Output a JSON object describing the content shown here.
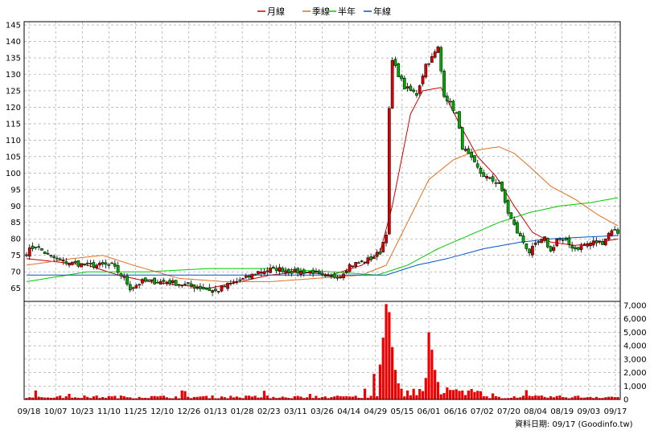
{
  "chart_data": {
    "type": "candlestick",
    "legend": [
      {
        "name": "月線",
        "color": "#cc0000"
      },
      {
        "name": "季線",
        "color": "#e07020"
      },
      {
        "name": "半年",
        "color": "#00cc00"
      },
      {
        "name": "年線",
        "color": "#0055cc"
      }
    ],
    "price_axis": {
      "ylim": [
        61,
        146
      ],
      "ticks": [
        65,
        70,
        75,
        80,
        85,
        90,
        95,
        100,
        105,
        110,
        115,
        120,
        125,
        130,
        135,
        140,
        145
      ]
    },
    "volume_axis": {
      "ylim": [
        0,
        7300
      ],
      "ticks": [
        0,
        1000,
        2000,
        3000,
        4000,
        5000,
        6000,
        7000
      ],
      "tick_labels": [
        "0",
        "1,000",
        "2,000",
        "3,000",
        "4,000",
        "5,000",
        "6,000",
        "7,000"
      ]
    },
    "x_labels": [
      "09/18",
      "10/07",
      "10/23",
      "11/10",
      "11/25",
      "12/10",
      "12/26",
      "01/13",
      "01/28",
      "02/23",
      "03/11",
      "03/26",
      "04/14",
      "04/29",
      "05/15",
      "06/01",
      "06/16",
      "07/02",
      "07/20",
      "08/04",
      "08/19",
      "09/03",
      "09/17"
    ],
    "close_anchors": [
      [
        0,
        76
      ],
      [
        3,
        78
      ],
      [
        7,
        75
      ],
      [
        12,
        73
      ],
      [
        20,
        72
      ],
      [
        28,
        72
      ],
      [
        32,
        68
      ],
      [
        34,
        65
      ],
      [
        38,
        67
      ],
      [
        46,
        67
      ],
      [
        52,
        66
      ],
      [
        58,
        65
      ],
      [
        62,
        64
      ],
      [
        66,
        66
      ],
      [
        72,
        68
      ],
      [
        76,
        70
      ],
      [
        82,
        71
      ],
      [
        88,
        70
      ],
      [
        94,
        70
      ],
      [
        98,
        68
      ],
      [
        103,
        69
      ],
      [
        106,
        72
      ],
      [
        110,
        73
      ],
      [
        113,
        74
      ],
      [
        116,
        76
      ],
      [
        118,
        82
      ],
      [
        119,
        119
      ],
      [
        120,
        134
      ],
      [
        122,
        130
      ],
      [
        124,
        126
      ],
      [
        128,
        124
      ],
      [
        131,
        133
      ],
      [
        133,
        135
      ],
      [
        135,
        138
      ],
      [
        137,
        124
      ],
      [
        141,
        118
      ],
      [
        143,
        108
      ],
      [
        146,
        104
      ],
      [
        149,
        100
      ],
      [
        152,
        98
      ],
      [
        155,
        97
      ],
      [
        158,
        88
      ],
      [
        161,
        82
      ],
      [
        163,
        79
      ],
      [
        165,
        76
      ],
      [
        167,
        78
      ],
      [
        170,
        80
      ],
      [
        172,
        76
      ],
      [
        174,
        80
      ],
      [
        177,
        79
      ],
      [
        180,
        77
      ],
      [
        183,
        78
      ],
      [
        186,
        79
      ],
      [
        189,
        79
      ],
      [
        192,
        83
      ],
      [
        194,
        82
      ]
    ],
    "ma_month_anchors": [
      [
        0,
        74
      ],
      [
        10,
        73
      ],
      [
        20,
        72
      ],
      [
        30,
        69
      ],
      [
        40,
        67
      ],
      [
        50,
        66
      ],
      [
        60,
        65
      ],
      [
        70,
        67
      ],
      [
        80,
        69
      ],
      [
        90,
        70
      ],
      [
        100,
        69
      ],
      [
        110,
        72
      ],
      [
        116,
        76
      ],
      [
        120,
        90
      ],
      [
        126,
        118
      ],
      [
        130,
        125
      ],
      [
        136,
        126
      ],
      [
        142,
        115
      ],
      [
        148,
        105
      ],
      [
        154,
        99
      ],
      [
        160,
        90
      ],
      [
        166,
        82
      ],
      [
        172,
        79
      ],
      [
        180,
        78
      ],
      [
        188,
        79
      ],
      [
        194,
        80
      ]
    ],
    "ma_quarter_anchors": [
      [
        0,
        72
      ],
      [
        15,
        74
      ],
      [
        25,
        75
      ],
      [
        35,
        72
      ],
      [
        50,
        68
      ],
      [
        65,
        67
      ],
      [
        80,
        67
      ],
      [
        95,
        68
      ],
      [
        110,
        69
      ],
      [
        118,
        72
      ],
      [
        125,
        85
      ],
      [
        132,
        98
      ],
      [
        140,
        104
      ],
      [
        148,
        107
      ],
      [
        155,
        108
      ],
      [
        160,
        106
      ],
      [
        165,
        102
      ],
      [
        172,
        96
      ],
      [
        180,
        92
      ],
      [
        188,
        87
      ],
      [
        194,
        84
      ]
    ],
    "ma_half_anchors": [
      [
        0,
        67
      ],
      [
        20,
        70
      ],
      [
        40,
        70
      ],
      [
        60,
        71
      ],
      [
        80,
        71
      ],
      [
        100,
        70
      ],
      [
        115,
        69
      ],
      [
        125,
        72
      ],
      [
        135,
        77
      ],
      [
        145,
        81
      ],
      [
        155,
        85
      ],
      [
        165,
        88
      ],
      [
        175,
        90
      ],
      [
        185,
        91
      ],
      [
        194,
        92.5
      ]
    ],
    "ma_year_anchors": [
      [
        0,
        69
      ],
      [
        40,
        69
      ],
      [
        80,
        69
      ],
      [
        105,
        69
      ],
      [
        118,
        69
      ],
      [
        128,
        72
      ],
      [
        138,
        74
      ],
      [
        150,
        77
      ],
      [
        162,
        79
      ],
      [
        172,
        80
      ],
      [
        182,
        80.5
      ],
      [
        194,
        81
      ]
    ],
    "volume_spikes": [
      [
        111,
        800
      ],
      [
        114,
        1900
      ],
      [
        116,
        2600
      ],
      [
        117,
        4600
      ],
      [
        118,
        7100
      ],
      [
        119,
        6500
      ],
      [
        120,
        3900
      ],
      [
        121,
        2200
      ],
      [
        122,
        1200
      ],
      [
        123,
        800
      ],
      [
        131,
        1600
      ],
      [
        132,
        5000
      ],
      [
        133,
        3700
      ],
      [
        134,
        2200
      ],
      [
        135,
        1300
      ],
      [
        138,
        900
      ],
      [
        140,
        700
      ]
    ]
  },
  "source_note": "資料日期: 09/17  (Goodinfo.tw)"
}
